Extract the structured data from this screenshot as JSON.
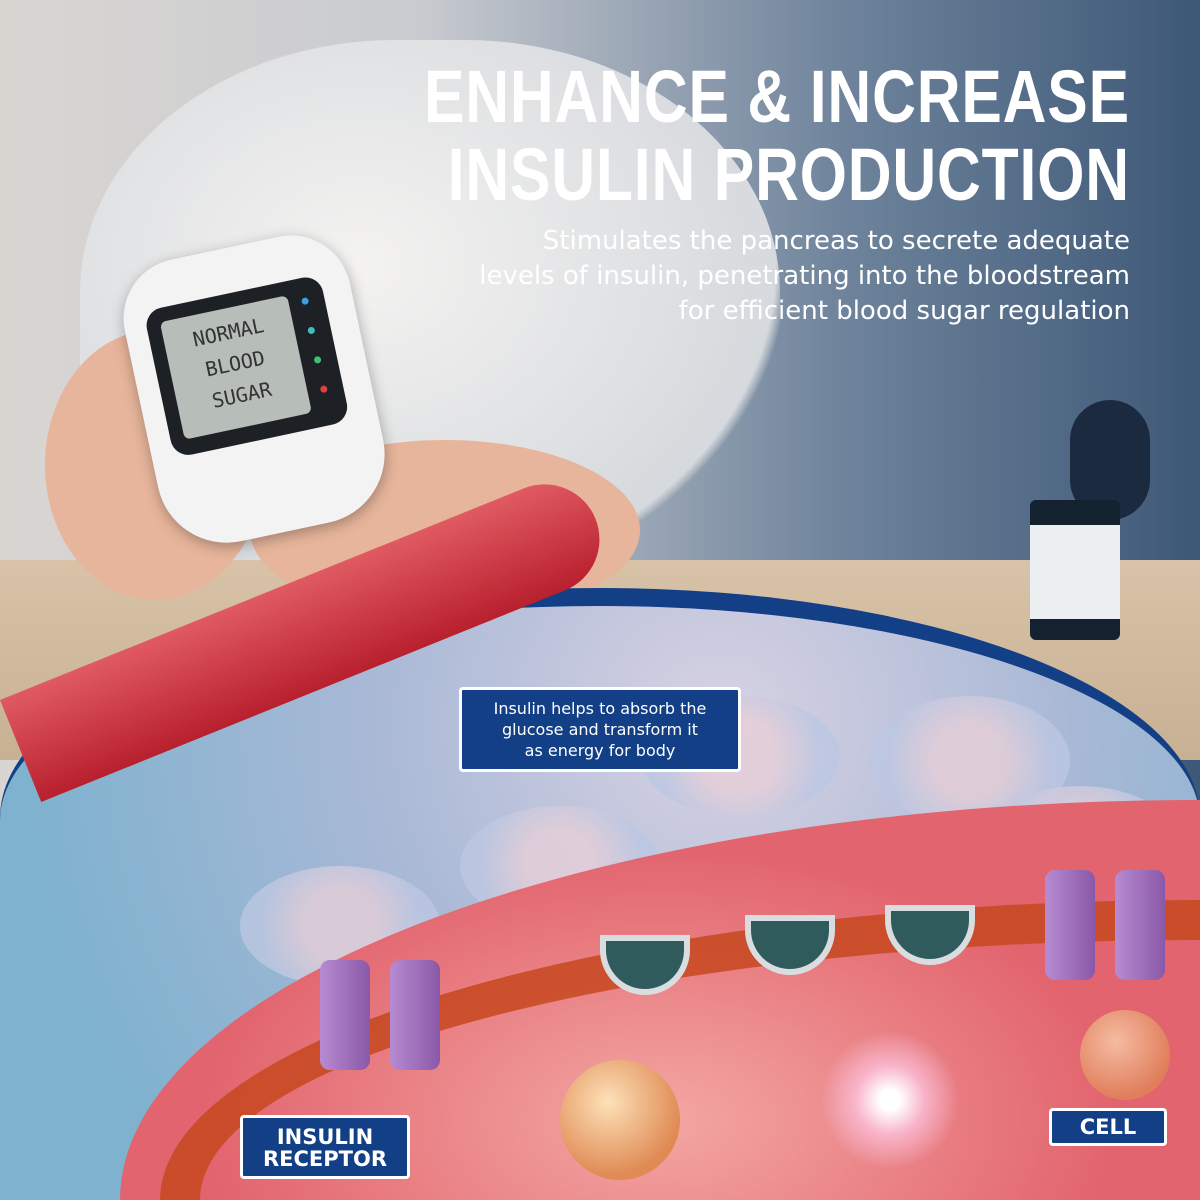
{
  "headline": {
    "line1": "ENHANCE & INCREASE",
    "line2": "INSULIN PRODUCTION"
  },
  "subheadline": {
    "line1": "Stimulates the pancreas to secrete adequate",
    "line2": "levels of insulin, penetrating into the bloodstream",
    "line3": "for efficient blood sugar regulation"
  },
  "meter_screen": {
    "line1": "NORMAL",
    "line2": "BLOOD",
    "line3": "SUGAR"
  },
  "info_box": {
    "line1": "Insulin helps to absorb the",
    "line2": "glucose and transform it",
    "line3": "as energy for body"
  },
  "labels": {
    "receptor_line1": "INSULIN",
    "receptor_line2": "RECEPTOR",
    "cell": "CELL"
  },
  "colors": {
    "brand_blue": "#123f86",
    "text": "#ffffff"
  }
}
